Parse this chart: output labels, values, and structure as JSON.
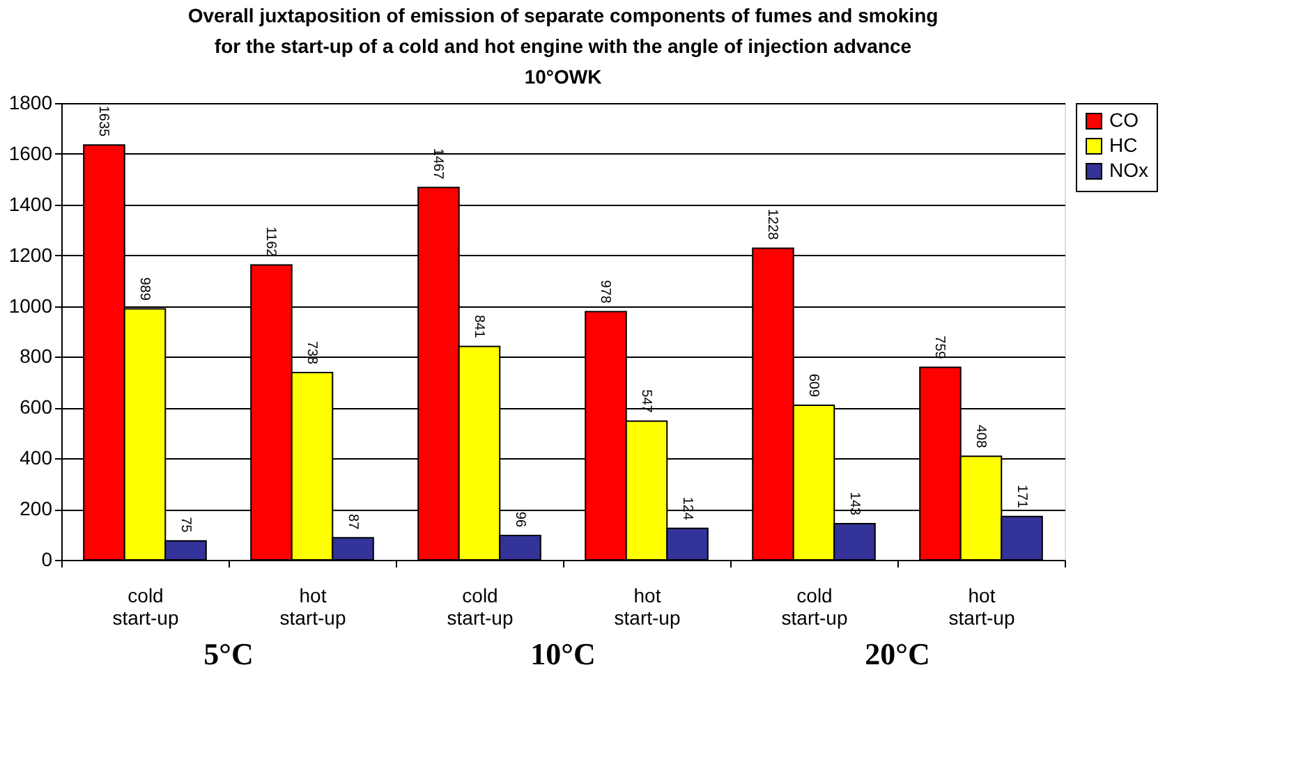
{
  "chart_data": {
    "type": "bar",
    "title": "Overall juxtaposition of emission of separate components of fumes and smoking for the start-up of a cold and hot engine with the angle of injection advance 10°OWK",
    "categories": [
      "cold start-up",
      "hot start-up",
      "cold start-up",
      "hot start-up",
      "cold start-up",
      "hot start-up"
    ],
    "series": [
      {
        "name": "CO",
        "color": "#ff0000",
        "values": [
          1635,
          1162,
          1467,
          978,
          1228,
          759
        ]
      },
      {
        "name": "HC",
        "color": "#ffff00",
        "values": [
          989,
          738,
          841,
          547,
          609,
          408
        ]
      },
      {
        "name": "NOx",
        "color": "#333399",
        "values": [
          75,
          87,
          96,
          124,
          143,
          171
        ]
      }
    ],
    "annotations": [
      "5°C",
      "10°C",
      "20°C"
    ],
    "ylim": [
      0,
      1800
    ],
    "yticks": [
      0,
      200,
      400,
      600,
      800,
      1000,
      1200,
      1400,
      1600,
      1800
    ],
    "grid": "y",
    "legend": "right",
    "data_labels": true
  }
}
